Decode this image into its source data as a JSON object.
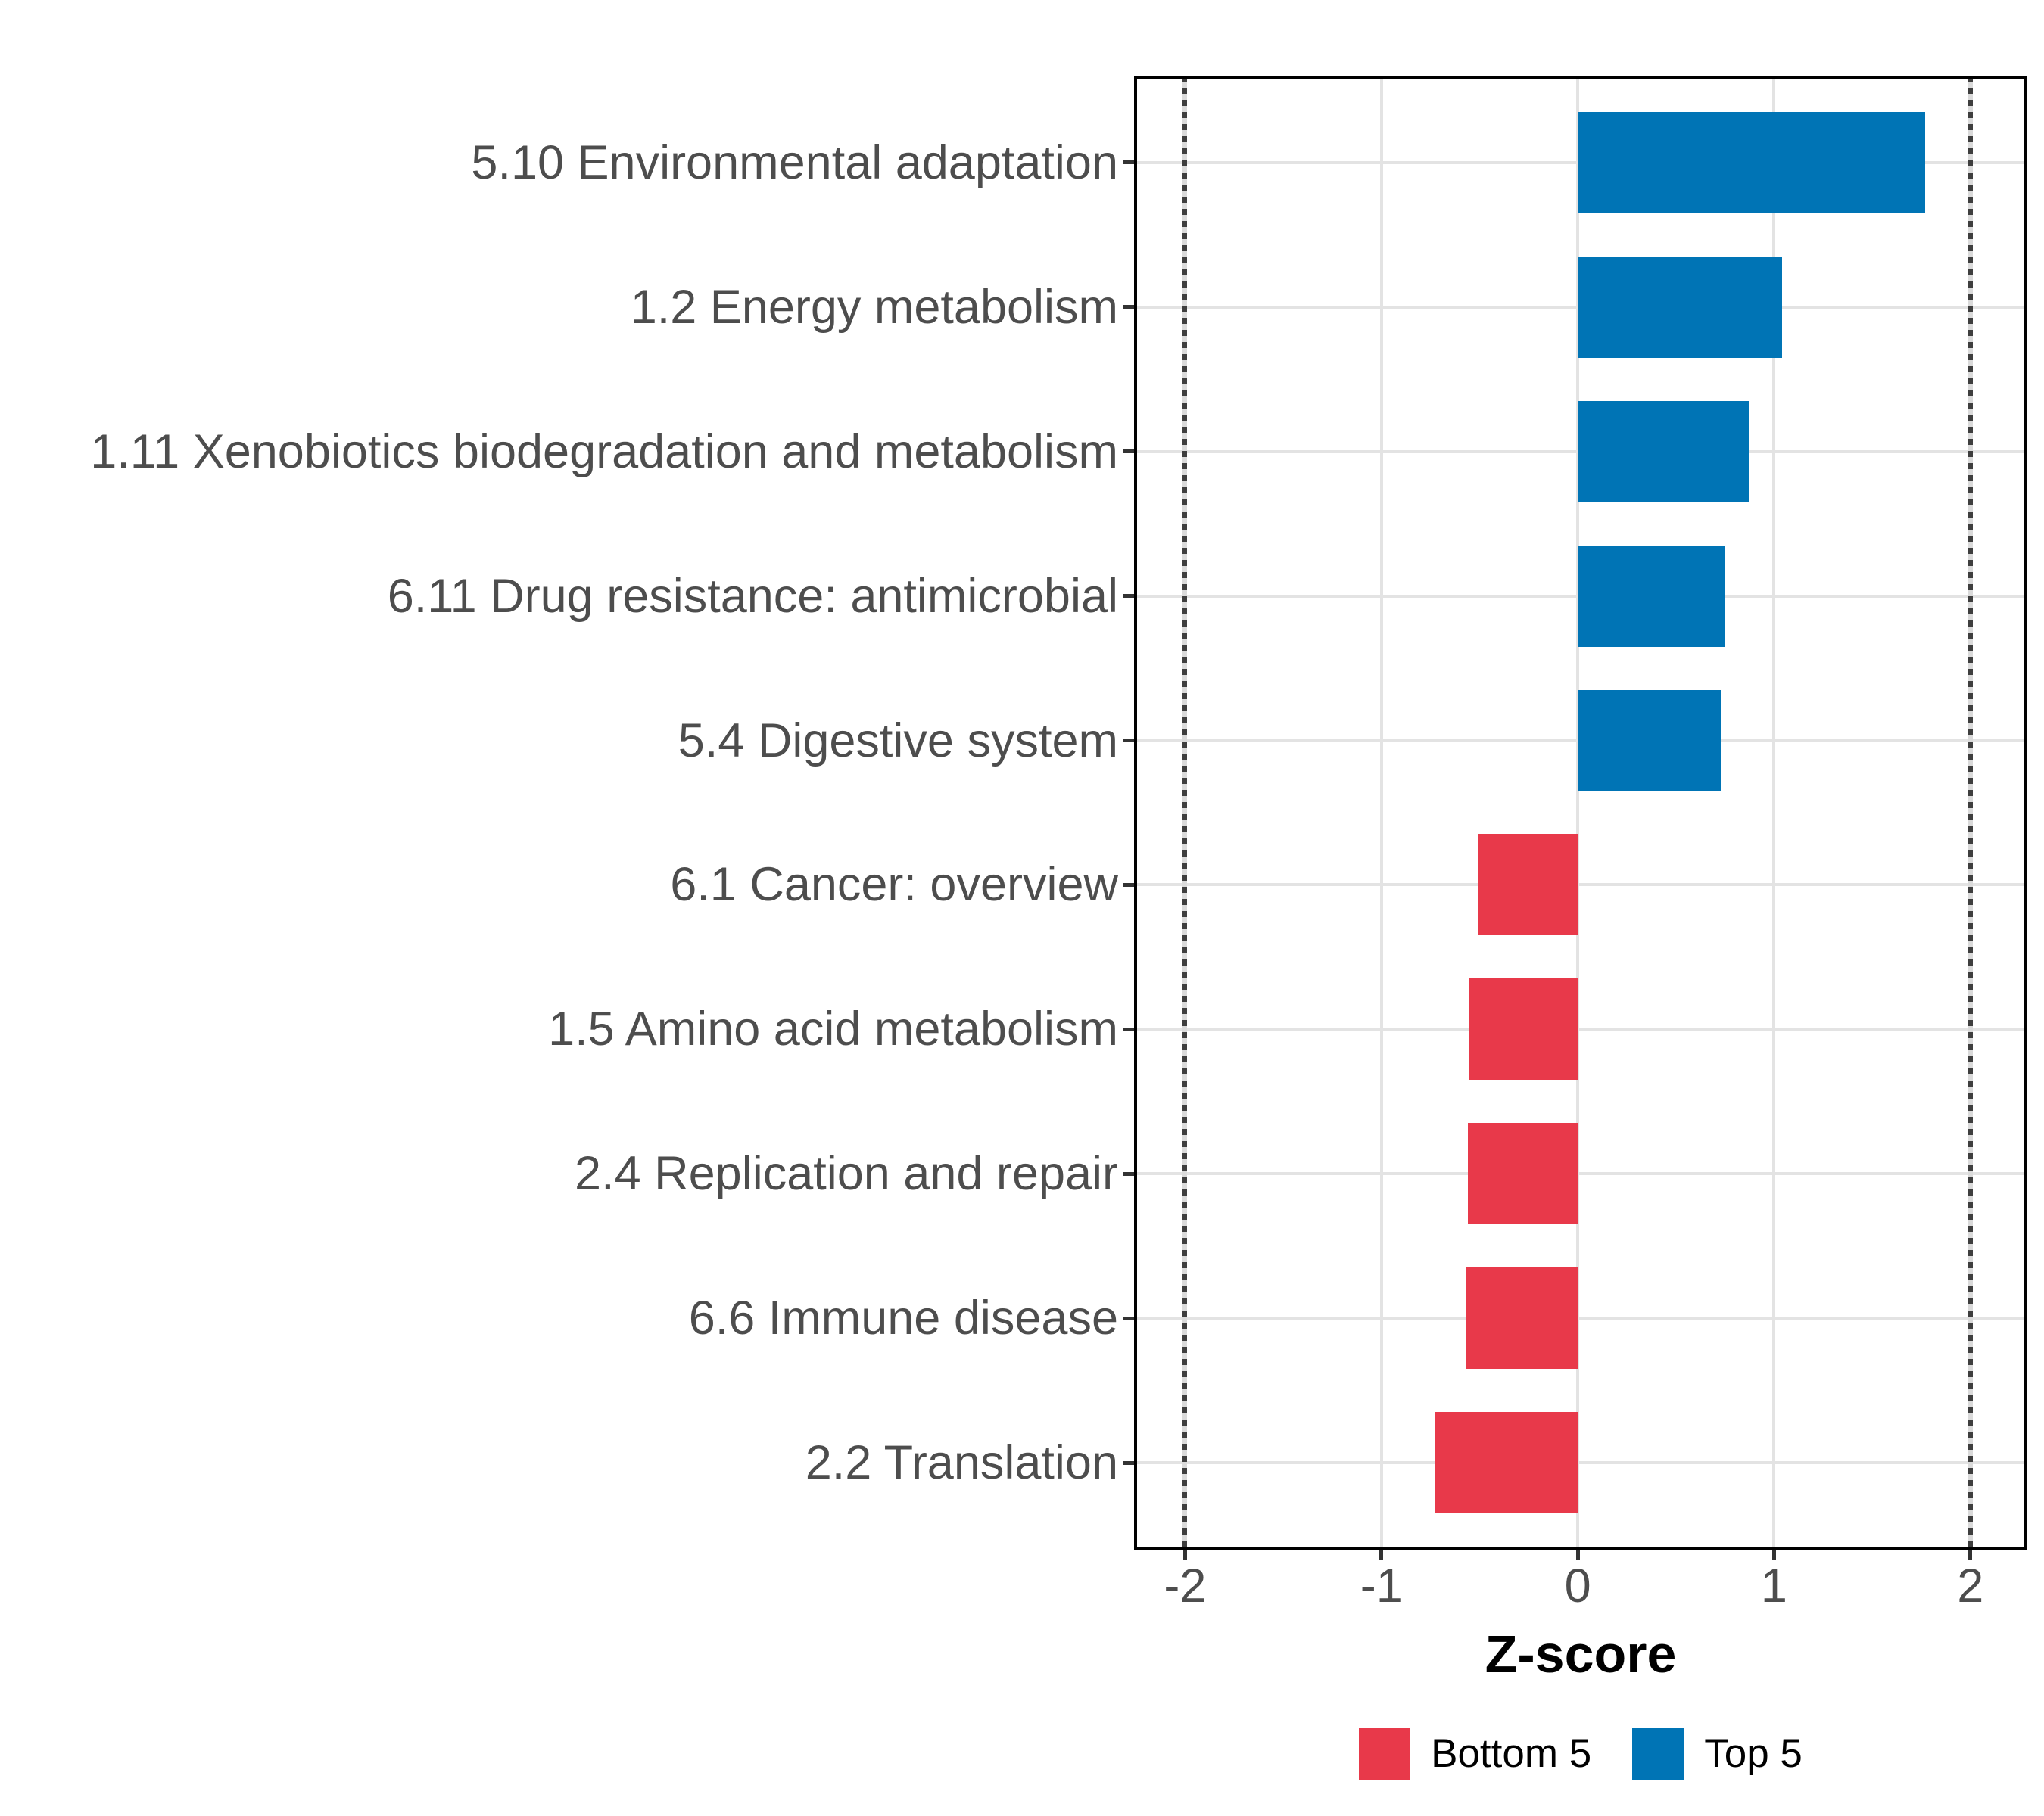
{
  "chart_data": {
    "type": "bar",
    "orientation": "horizontal",
    "title": "",
    "xlabel": "Z-score",
    "ylabel": "",
    "xlim": [
      -2.26,
      2.29
    ],
    "x_ticks": [
      -2,
      -1,
      0,
      1,
      2
    ],
    "x_tick_labels": [
      "-2",
      "-1",
      "0",
      "1",
      "2"
    ],
    "grid": "major-only",
    "panel_border": true,
    "reference_lines": {
      "x": [
        -2,
        2
      ],
      "style": "dotted",
      "color": "#3E3E3E"
    },
    "legend_position": "bottom",
    "categories": [
      "5.10 Environmental adaptation",
      "1.2 Energy metabolism",
      "1.11 Xenobiotics biodegradation and metabolism",
      "6.11 Drug resistance: antimicrobial",
      "5.4 Digestive system",
      "6.1 Cancer: overview",
      "1.5 Amino acid metabolism",
      "2.4 Replication and repair",
      "6.6 Immune disease",
      "2.2 Translation"
    ],
    "values": [
      1.77,
      1.04,
      0.87,
      0.75,
      0.73,
      -0.51,
      -0.55,
      -0.56,
      -0.57,
      -0.73
    ],
    "bar_groups": [
      "Top 5",
      "Top 5",
      "Top 5",
      "Top 5",
      "Top 5",
      "Bottom 5",
      "Bottom 5",
      "Bottom 5",
      "Bottom 5",
      "Bottom 5"
    ],
    "legend": [
      {
        "label": "Bottom 5",
        "color": "#E8394A"
      },
      {
        "label": "Top 5",
        "color": "#0074B5"
      }
    ]
  },
  "colors": {
    "top5_blue": "#0074B5",
    "bottom5_red": "#E8394A",
    "gridline": "#E3E3E3",
    "axis_text": "#4D4D4D",
    "panel_border": "#000000",
    "reference_line": "#3E3E3E",
    "background": "#FFFFFF"
  }
}
